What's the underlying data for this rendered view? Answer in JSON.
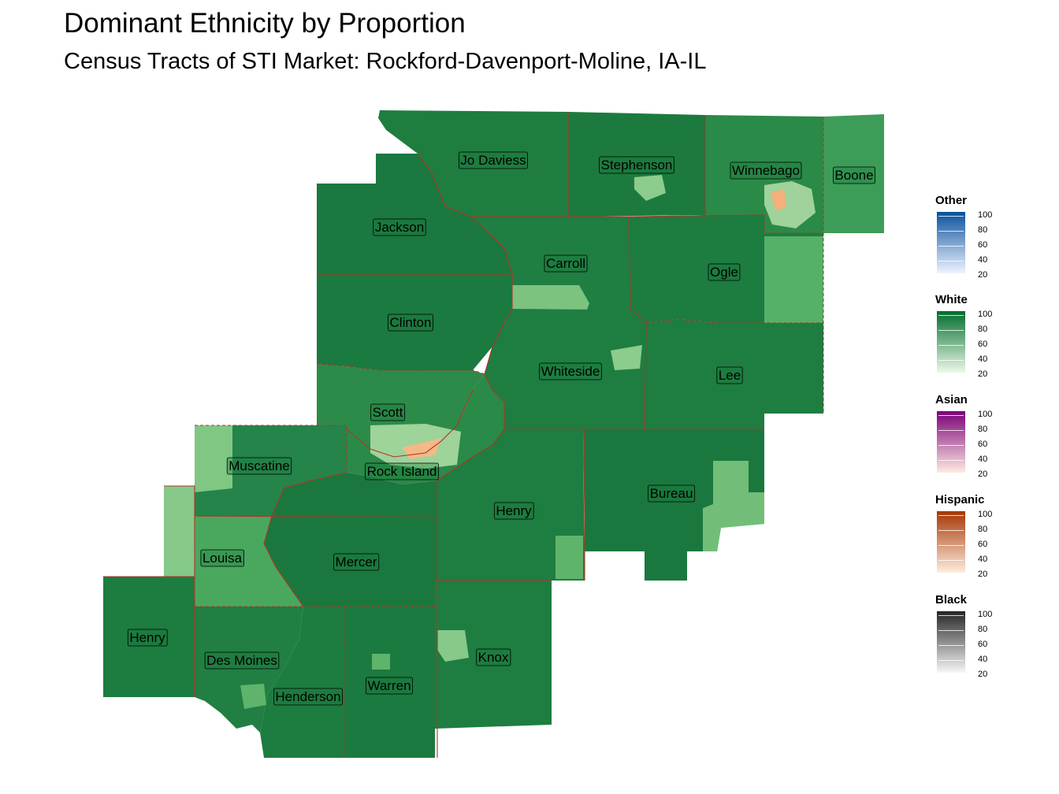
{
  "title": "Dominant Ethnicity by Proportion",
  "subtitle": "Census Tracts of STI Market: Rockford-Davenport-Moline, IA-IL",
  "colors": {
    "county_border": "#b0342a",
    "white_dark": "#17733a",
    "white_mid": "#3a9a55",
    "white_light": "#86c98a"
  },
  "counties": [
    {
      "name": "Jo Daviess"
    },
    {
      "name": "Stephenson"
    },
    {
      "name": "Winnebago"
    },
    {
      "name": "Boone"
    },
    {
      "name": "Jackson"
    },
    {
      "name": "Carroll"
    },
    {
      "name": "Ogle"
    },
    {
      "name": "Clinton"
    },
    {
      "name": "Whiteside"
    },
    {
      "name": "Lee"
    },
    {
      "name": "Scott"
    },
    {
      "name": "Muscatine"
    },
    {
      "name": "Rock Island"
    },
    {
      "name": "Bureau"
    },
    {
      "name": "Henry"
    },
    {
      "name": "Louisa"
    },
    {
      "name": "Mercer"
    },
    {
      "name": "Henry"
    },
    {
      "name": "Des Moines"
    },
    {
      "name": "Henderson"
    },
    {
      "name": "Warren"
    },
    {
      "name": "Knox"
    }
  ],
  "legends": [
    {
      "title": "Other",
      "ticks": [
        "100",
        "80",
        "60",
        "40",
        "20"
      ],
      "color_high": "#08519c",
      "color_low": "#eff3ff"
    },
    {
      "title": "White",
      "ticks": [
        "100",
        "80",
        "60",
        "40",
        "20"
      ],
      "color_high": "#006d2c",
      "color_low": "#edf8e9"
    },
    {
      "title": "Asian",
      "ticks": [
        "100",
        "80",
        "60",
        "40",
        "20"
      ],
      "color_high": "#7a0177",
      "color_low": "#feebe2"
    },
    {
      "title": "Hispanic",
      "ticks": [
        "100",
        "80",
        "60",
        "40",
        "20"
      ],
      "color_high": "#a63603",
      "color_low": "#feedde"
    },
    {
      "title": "Black",
      "ticks": [
        "100",
        "80",
        "60",
        "40",
        "20"
      ],
      "color_high": "#252525",
      "color_low": "#f7f7f7"
    }
  ]
}
